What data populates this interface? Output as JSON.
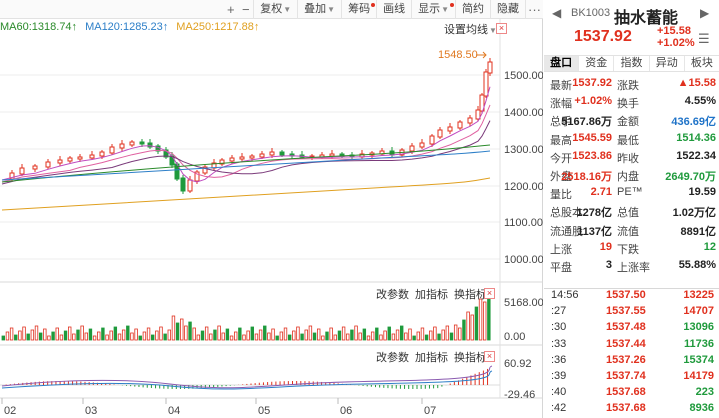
{
  "toolbar": {
    "buttons": [
      "复权",
      "叠加",
      "筹码",
      "画线",
      "显示",
      "简约",
      "隐藏"
    ],
    "plus": "+",
    "minus": "−",
    "more": "···"
  },
  "ma": {
    "ma60": "MA60:1318.74↑",
    "ma120": "MA120:1285.23↑",
    "ma250": "MA250:1217.88↑",
    "settings": "设置均线"
  },
  "price_axis": [
    "1500.00",
    "1400.00",
    "1300.00",
    "1200.00",
    "1100.00",
    "1000.00"
  ],
  "high_marker": "1548.50",
  "indicator_controls": [
    "改参数",
    "加指标",
    "换指标"
  ],
  "volume_axis": [
    "5168.00",
    "0.00"
  ],
  "macd_axis": [
    "60.92",
    "-29.46"
  ],
  "month_labels": [
    "02",
    "03",
    "04",
    "05",
    "06",
    "07"
  ],
  "colors": {
    "up": "#e0301e",
    "down": "#1f9a3c",
    "ma60": "#2a8a2a",
    "ma120": "#2d7fc8",
    "ma250": "#e0a020"
  },
  "header": {
    "code": "BK1003",
    "name": "抽水蓄能",
    "price": "1537.92",
    "change": "+15.58",
    "change_pct": "+1.02%"
  },
  "tabs": [
    "盘口",
    "资金",
    "指数",
    "异动",
    "板块"
  ],
  "quote": [
    {
      "l1": "最新",
      "v1": "1537.92",
      "c1": "red",
      "l2": "涨跌",
      "v2": "▲15.58",
      "c2": "red"
    },
    {
      "l1": "涨幅",
      "v1": "+1.02%",
      "c1": "red",
      "l2": "换手",
      "v2": "4.55%",
      "c2": "blk"
    },
    {
      "l1": "总手",
      "v1": "5167.86万",
      "c1": "blk",
      "l2": "金额",
      "v2": "436.69亿",
      "c2": "blue"
    },
    {
      "l1": "最高",
      "v1": "1545.59",
      "c1": "red",
      "l2": "最低",
      "v2": "1514.36",
      "c2": "green"
    },
    {
      "l1": "今开",
      "v1": "1523.86",
      "c1": "red",
      "l2": "昨收",
      "v2": "1522.34",
      "c2": "blk"
    },
    {
      "l1": "外盘",
      "v1": "2518.16万",
      "c1": "red",
      "l2": "内盘",
      "v2": "2649.70万",
      "c2": "green"
    },
    {
      "l1": "量比",
      "v1": "2.71",
      "c1": "red",
      "l2": "PE™",
      "v2": "19.59",
      "c2": "blk"
    },
    {
      "l1": "总股本",
      "v1": "1278亿",
      "c1": "blk",
      "l2": "总值",
      "v2": "1.02万亿",
      "c2": "blk"
    },
    {
      "l1": "流通股",
      "v1": "1137亿",
      "c1": "blk",
      "l2": "流值",
      "v2": "8891亿",
      "c2": "blk"
    },
    {
      "l1": "上涨",
      "v1": "19",
      "c1": "red",
      "l2": "下跌",
      "v2": "12",
      "c2": "green"
    },
    {
      "l1": "平盘",
      "v1": "3",
      "c1": "blk",
      "l2": "上涨率",
      "v2": "55.88%",
      "c2": "blk"
    }
  ],
  "ticks": [
    {
      "t": "14:56",
      "p": "1537.50",
      "v": "13225",
      "c": "red"
    },
    {
      "t": ":27",
      "p": "1537.55",
      "v": "14707",
      "c": "red"
    },
    {
      "t": ":30",
      "p": "1537.48",
      "v": "13096",
      "c": "green"
    },
    {
      "t": ":33",
      "p": "1537.44",
      "v": "11736",
      "c": "green"
    },
    {
      "t": ":36",
      "p": "1537.26",
      "v": "15374",
      "c": "green"
    },
    {
      "t": ":39",
      "p": "1537.74",
      "v": "14179",
      "c": "red"
    },
    {
      "t": ":40",
      "p": "1537.68",
      "v": "223",
      "c": "green"
    },
    {
      "t": ":42",
      "p": "1537.68",
      "v": "8936",
      "c": "green"
    }
  ]
}
